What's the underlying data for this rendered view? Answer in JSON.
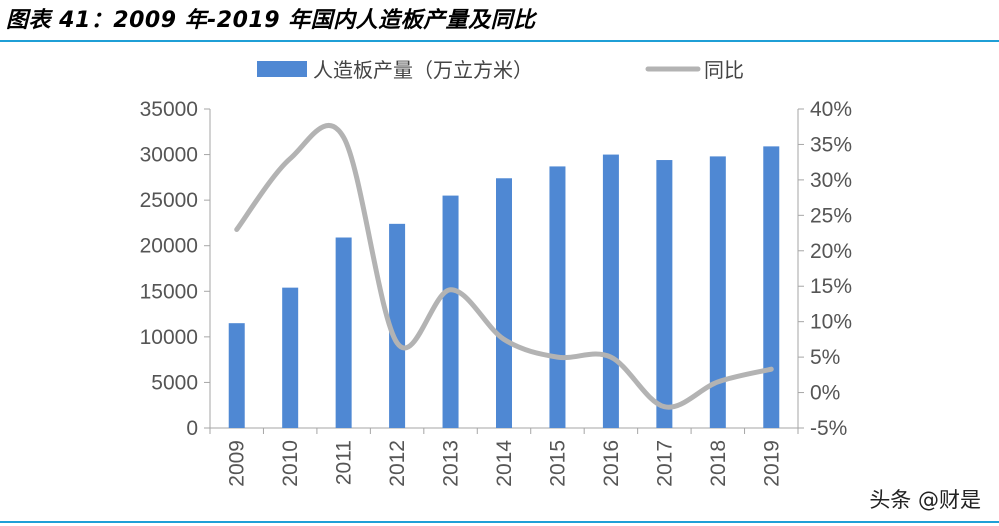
{
  "title": "图表 41：2009 年-2019 年国内人造板产量及同比",
  "watermark": "头条 @财是",
  "chart_data": {
    "type": "bar",
    "categories": [
      "2009",
      "2010",
      "2011",
      "2012",
      "2013",
      "2014",
      "2015",
      "2016",
      "2017",
      "2018",
      "2019"
    ],
    "series": [
      {
        "name": "人造板产量（万立方米）",
        "type": "bar",
        "axis": "left",
        "color": "#4f88d3",
        "values": [
          11500,
          15400,
          20900,
          22400,
          25500,
          27400,
          28700,
          30000,
          29400,
          29800,
          30900
        ]
      },
      {
        "name": "同比",
        "type": "line",
        "axis": "right",
        "color": "#b3b3b3",
        "values": [
          23,
          33,
          36,
          7,
          14.5,
          7.5,
          5,
          5,
          -2,
          1.5,
          3.3
        ]
      }
    ],
    "ylim_left": [
      0,
      35000
    ],
    "yticks_left": [
      "0",
      "5000",
      "10000",
      "15000",
      "20000",
      "25000",
      "30000",
      "35000"
    ],
    "ylim_right": [
      -5,
      40
    ],
    "yticks_right": [
      "-5%",
      "0%",
      "5%",
      "10%",
      "15%",
      "20%",
      "25%",
      "30%",
      "35%",
      "40%"
    ],
    "legend": "top",
    "grid": false
  }
}
